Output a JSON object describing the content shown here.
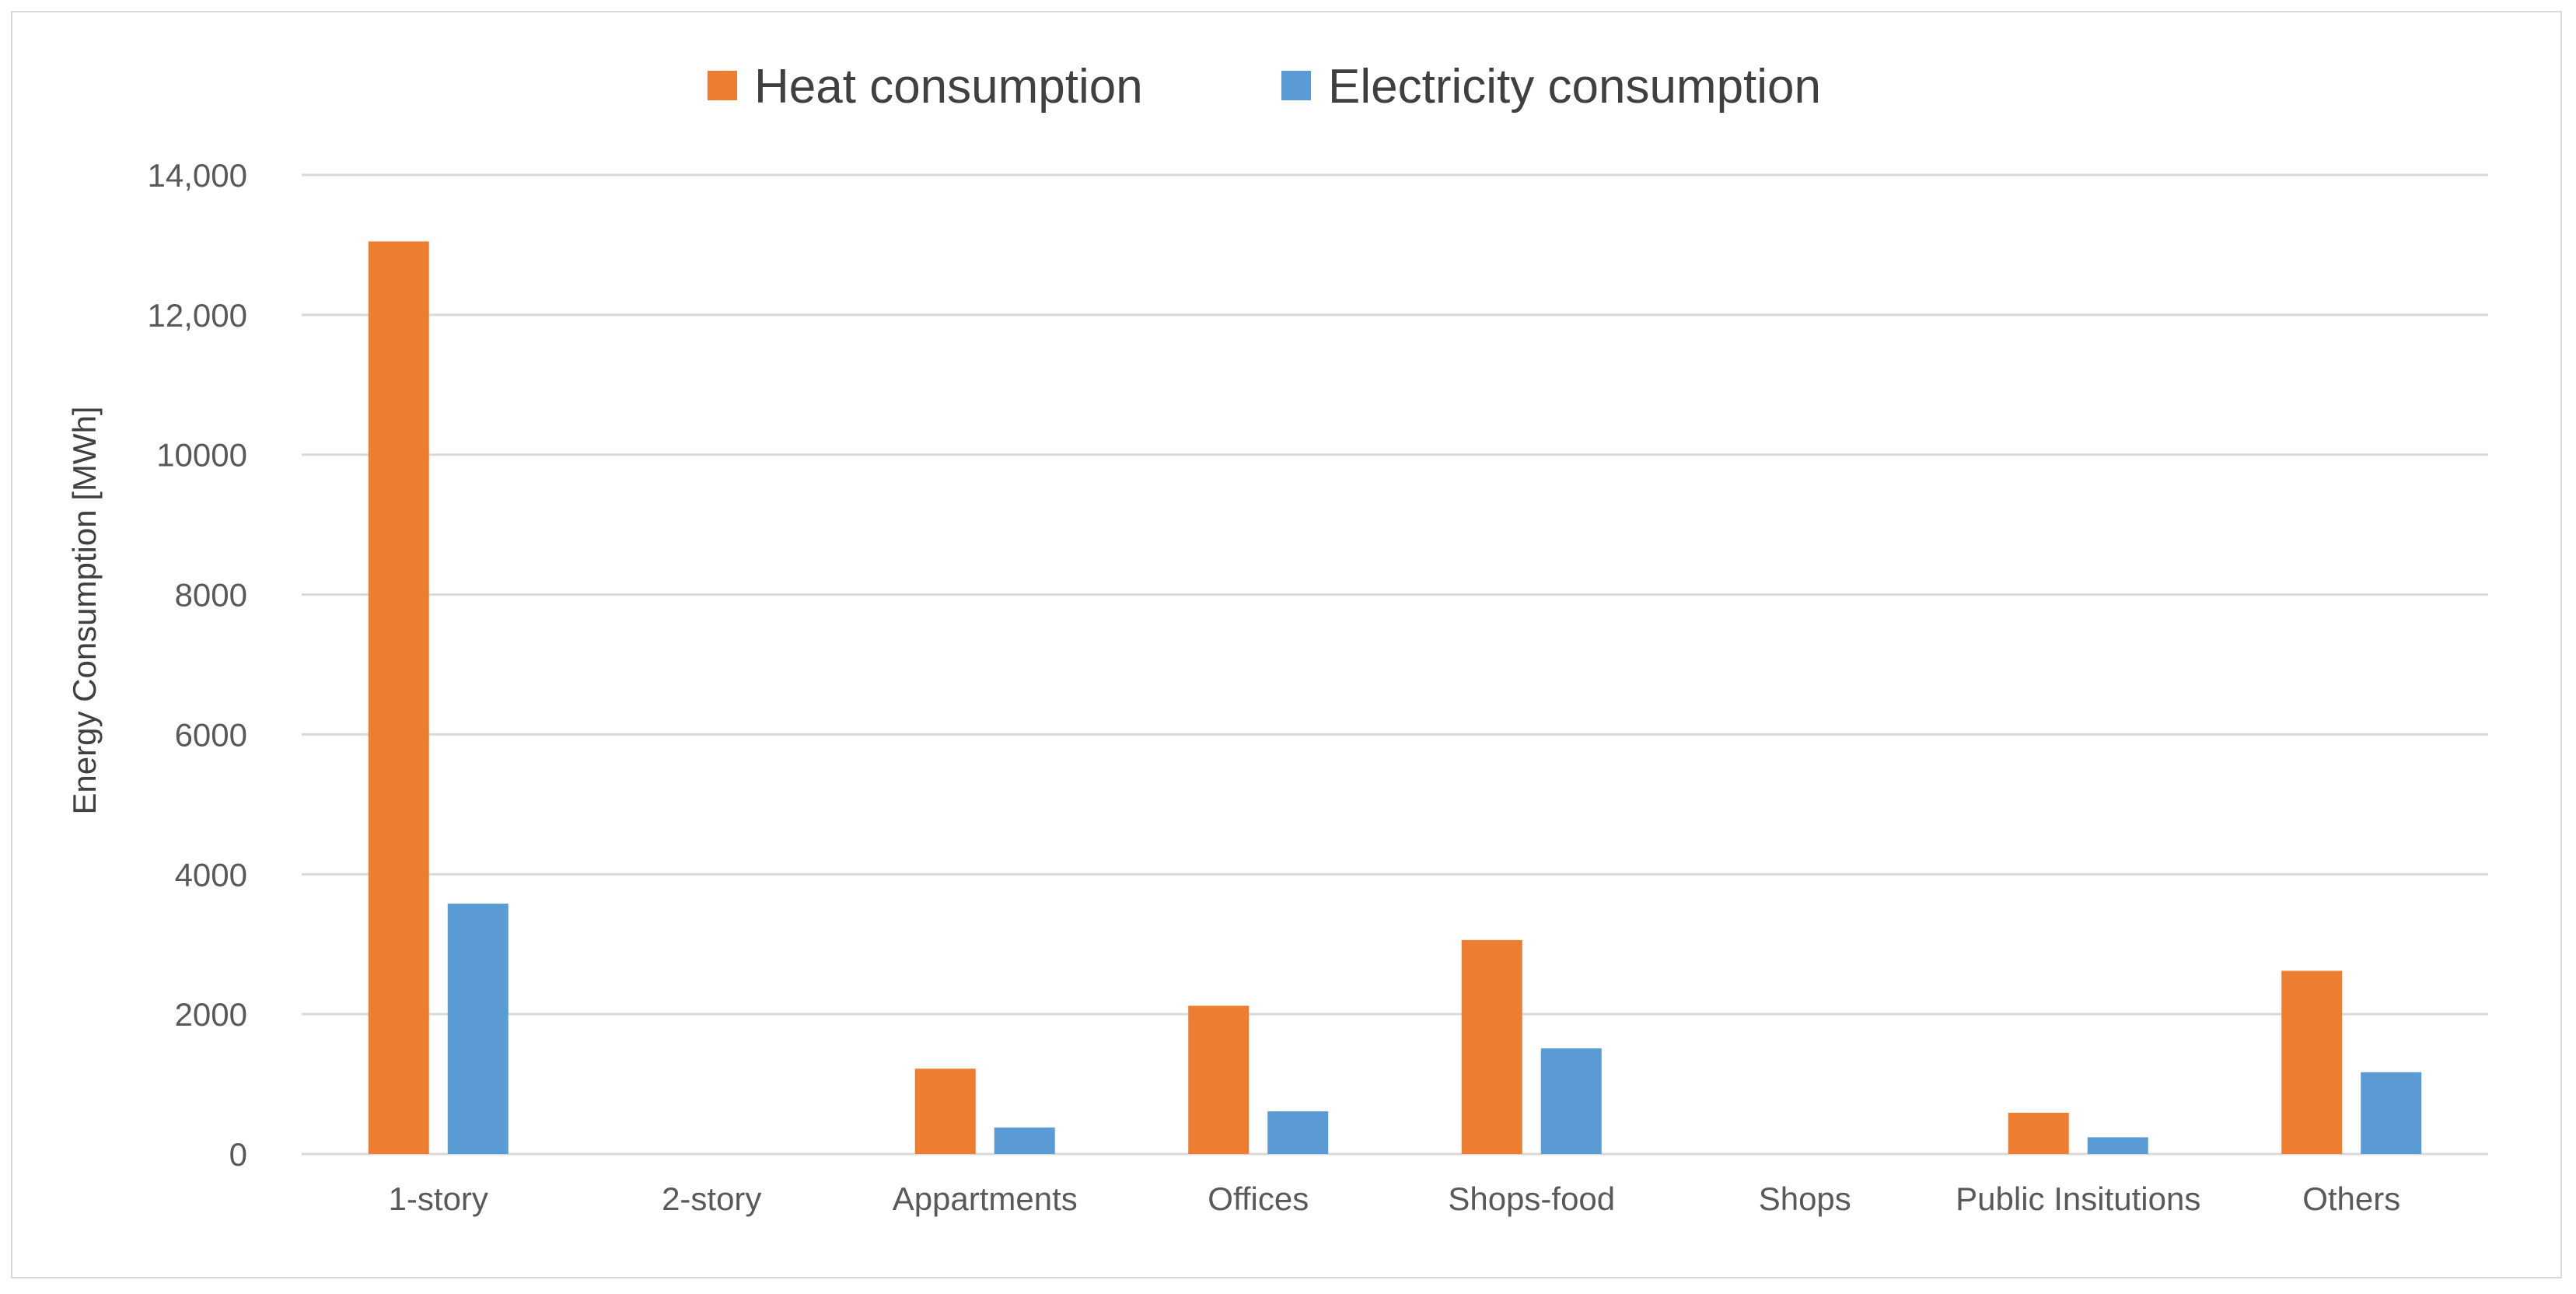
{
  "chart_data": {
    "type": "bar",
    "title": "",
    "xlabel": "",
    "ylabel": "Energy Consumption [MWh]",
    "ylim": [
      0,
      14000
    ],
    "yticks": [
      0,
      2000,
      4000,
      6000,
      8000,
      10000,
      12000,
      14000
    ],
    "ytick_labels": [
      "0",
      "2000",
      "4000",
      "6000",
      "8000",
      "10000",
      "12,000",
      "14,000"
    ],
    "grid": true,
    "legend_position": "top-center",
    "categories": [
      "1-story",
      "2-story",
      "Appartments",
      "Offices",
      "Shops-food",
      "Shops",
      "Public Insitutions",
      "Others"
    ],
    "series": [
      {
        "name": "Heat consumption",
        "color": "#ed7d31",
        "values": [
          13050,
          0,
          1220,
          2120,
          3060,
          0,
          590,
          2620
        ]
      },
      {
        "name": "Electricity consumption",
        "color": "#5b9bd5",
        "values": [
          3580,
          0,
          380,
          610,
          1510,
          0,
          240,
          1170
        ]
      }
    ]
  }
}
